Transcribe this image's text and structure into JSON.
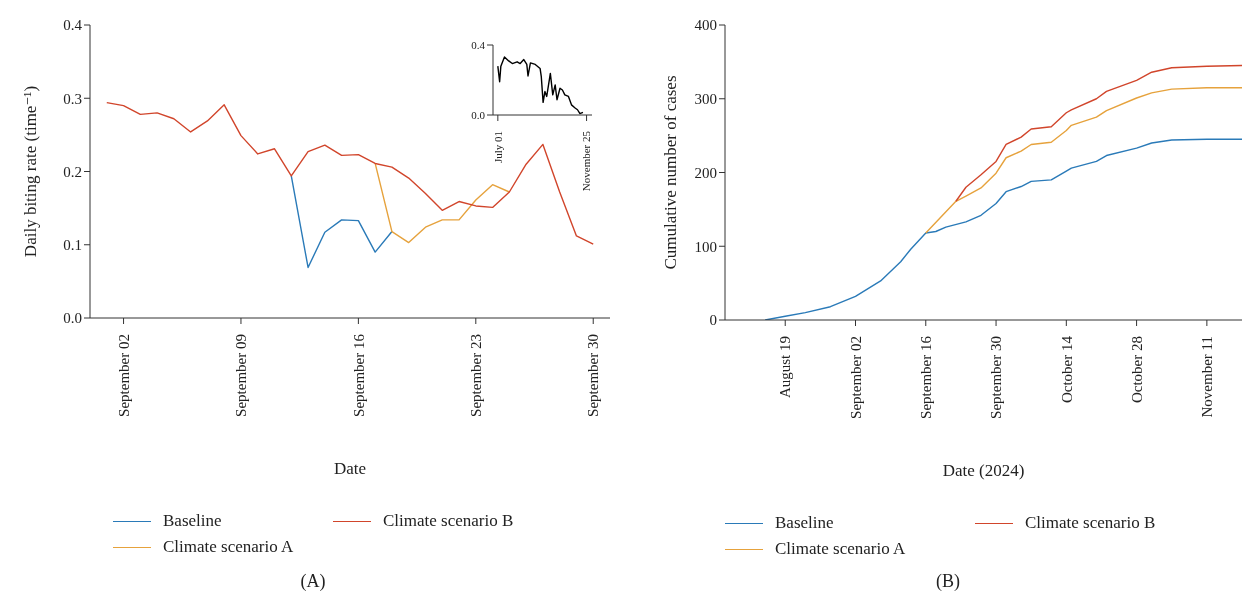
{
  "chart_data": [
    {
      "type": "line",
      "xlabel": "Date",
      "ylabel": "Daily biting rate (time⁻¹)",
      "x": [
        "--09-01",
        "--09-02",
        "--09-03",
        "--09-04",
        "--09-05",
        "--09-06",
        "--09-07",
        "--09-08",
        "--09-09",
        "--09-10",
        "--09-11",
        "--09-12",
        "--09-13",
        "--09-14",
        "--09-15",
        "--09-16",
        "--09-17",
        "--09-18",
        "--09-19",
        "--09-20",
        "--09-21",
        "--09-22",
        "--09-23",
        "--09-24",
        "--09-25",
        "--09-26",
        "--09-27",
        "--09-28",
        "--09-29",
        "--09-30"
      ],
      "series": [
        {
          "name": "Baseline",
          "color": "#2a7ab8",
          "values": [
            null,
            null,
            null,
            null,
            null,
            null,
            null,
            null,
            null,
            null,
            null,
            0.194,
            0.069,
            0.117,
            0.134,
            0.133,
            0.09,
            0.118,
            null,
            null,
            null,
            null,
            null,
            null,
            null,
            null,
            null,
            null,
            null,
            null
          ]
        },
        {
          "name": "Climate scenario A",
          "color": "#e6a23c",
          "values": [
            null,
            null,
            null,
            null,
            null,
            null,
            null,
            null,
            null,
            null,
            null,
            null,
            null,
            null,
            null,
            null,
            0.211,
            0.118,
            0.103,
            0.124,
            0.134,
            0.134,
            0.161,
            0.182,
            0.172,
            null,
            null,
            null,
            null,
            null
          ]
        },
        {
          "name": "Climate scenario B",
          "color": "#d1452b",
          "values": [
            0.294,
            0.29,
            0.278,
            0.28,
            0.272,
            0.254,
            0.269,
            0.291,
            0.249,
            0.224,
            0.231,
            0.194,
            0.227,
            0.236,
            0.222,
            0.223,
            0.211,
            0.206,
            0.191,
            0.17,
            0.147,
            0.159,
            0.153,
            0.151,
            0.172,
            0.21,
            0.237,
            0.172,
            0.112,
            0.101
          ]
        }
      ],
      "xlim": [
        "--08-31",
        "--10-01"
      ],
      "xticks": [
        {
          "value": "--09-02",
          "label": "September 02"
        },
        {
          "value": "--09-09",
          "label": "September 09"
        },
        {
          "value": "--09-16",
          "label": "September 16"
        },
        {
          "value": "--09-23",
          "label": "September 23"
        },
        {
          "value": "--09-30",
          "label": "September 30"
        }
      ],
      "ylim": [
        0,
        0.4
      ],
      "yticks": [
        {
          "value": 0,
          "label": "0.0"
        },
        0.1,
        0.2,
        0.3,
        0.4
      ],
      "legend": "bottom",
      "annotations": [
        "(A)"
      ]
    },
    {
      "type": "line",
      "xlabel": "Date (2024)",
      "ylabel": "Cumulative number  of cases",
      "series": [
        {
          "name": "Baseline",
          "color": "#2a7ab8",
          "x": [
            "2024-08-15",
            "2024-08-19",
            "2024-08-23",
            "2024-08-28",
            "2024-09-02",
            "2024-09-07",
            "2024-09-11",
            "2024-09-13",
            "2024-09-16",
            "2024-09-18",
            "2024-09-20",
            "2024-09-24",
            "2024-09-27",
            "2024-09-30",
            "2024-10-02",
            "2024-10-05",
            "2024-10-07",
            "2024-10-11",
            "2024-10-14",
            "2024-10-15",
            "2024-10-20",
            "2024-10-22",
            "2024-10-28",
            "2024-10-31",
            "2024-11-04",
            "2024-11-11",
            "2024-11-18"
          ],
          "values": [
            0,
            5,
            10,
            18,
            32,
            53,
            79,
            96,
            118,
            120,
            126,
            133,
            142,
            158,
            174,
            181,
            188,
            190,
            202,
            206,
            215,
            223,
            233,
            240,
            244,
            245,
            245
          ]
        },
        {
          "name": "Climate scenario A",
          "color": "#e6a23c",
          "x": [
            "2024-09-16",
            "2024-09-22",
            "2024-09-24",
            "2024-09-27",
            "2024-09-30",
            "2024-10-02",
            "2024-10-05",
            "2024-10-07",
            "2024-10-11",
            "2024-10-14",
            "2024-10-15",
            "2024-10-20",
            "2024-10-22",
            "2024-10-28",
            "2024-10-31",
            "2024-11-04",
            "2024-11-11",
            "2024-11-18"
          ],
          "values": [
            118,
            161,
            168,
            179,
            199,
            220,
            229,
            238,
            241,
            257,
            264,
            275,
            284,
            301,
            308,
            313,
            315,
            315
          ]
        },
        {
          "name": "Climate scenario B",
          "color": "#d1452b",
          "x": [
            "2024-09-22",
            "2024-09-24",
            "2024-09-27",
            "2024-09-30",
            "2024-10-02",
            "2024-10-05",
            "2024-10-07",
            "2024-10-11",
            "2024-10-14",
            "2024-10-15",
            "2024-10-20",
            "2024-10-22",
            "2024-10-28",
            "2024-10-31",
            "2024-11-04",
            "2024-11-11",
            "2024-11-18"
          ],
          "values": [
            161,
            180,
            197,
            215,
            238,
            248,
            259,
            262,
            281,
            285,
            300,
            310,
            325,
            336,
            342,
            344,
            345
          ]
        }
      ],
      "xlim": [
        "2024-08-07",
        "2024-11-18"
      ],
      "xticks": [
        {
          "value": "2024-08-19",
          "label": "August 19"
        },
        {
          "value": "2024-09-02",
          "label": "September 02"
        },
        {
          "value": "2024-09-16",
          "label": "September 16"
        },
        {
          "value": "2024-09-30",
          "label": "September 30"
        },
        {
          "value": "2024-10-14",
          "label": "October 14"
        },
        {
          "value": "2024-10-28",
          "label": "October 28"
        },
        {
          "value": "2024-11-11",
          "label": "November 11"
        }
      ],
      "ylim": [
        0,
        400
      ],
      "yticks": [
        0,
        100,
        200,
        300,
        400
      ],
      "legend": "bottom",
      "annotations": [
        "(B)"
      ]
    },
    {
      "type": "line",
      "series": [
        {
          "color": "#000000",
          "x": [
            "--07-01",
            "--07-04",
            "--07-06",
            "--07-12",
            "--07-19",
            "--07-25",
            "--08-02",
            "--08-07",
            "--08-13",
            "--08-18",
            "--08-20",
            "--08-24",
            "--09-01",
            "--09-09",
            "--09-11",
            "--09-14",
            "--09-17",
            "--09-20",
            "--09-26",
            "--09-30",
            "--10-04",
            "--10-07",
            "--10-12",
            "--10-16",
            "--10-20",
            "--10-26",
            "--10-31",
            "--11-06",
            "--11-10",
            "--11-14",
            "--11-19"
          ],
          "values": [
            0.279,
            0.19,
            0.279,
            0.332,
            0.309,
            0.294,
            0.304,
            0.294,
            0.317,
            0.289,
            0.223,
            0.298,
            0.289,
            0.266,
            0.219,
            0.072,
            0.134,
            0.106,
            0.238,
            0.115,
            0.172,
            0.087,
            0.153,
            0.143,
            0.115,
            0.106,
            0.058,
            0.04,
            0.03,
            0.008,
            0.015
          ]
        }
      ],
      "xlim": [
        "--06-23",
        "--12-04"
      ],
      "xticks": [
        {
          "value": "--07-01",
          "label": "July 01"
        },
        {
          "value": "--11-25",
          "label": "November 25"
        }
      ],
      "ylim": [
        0,
        0.4
      ],
      "yticks": [
        {
          "value": 0,
          "label": "0.0"
        },
        0.4
      ]
    }
  ]
}
